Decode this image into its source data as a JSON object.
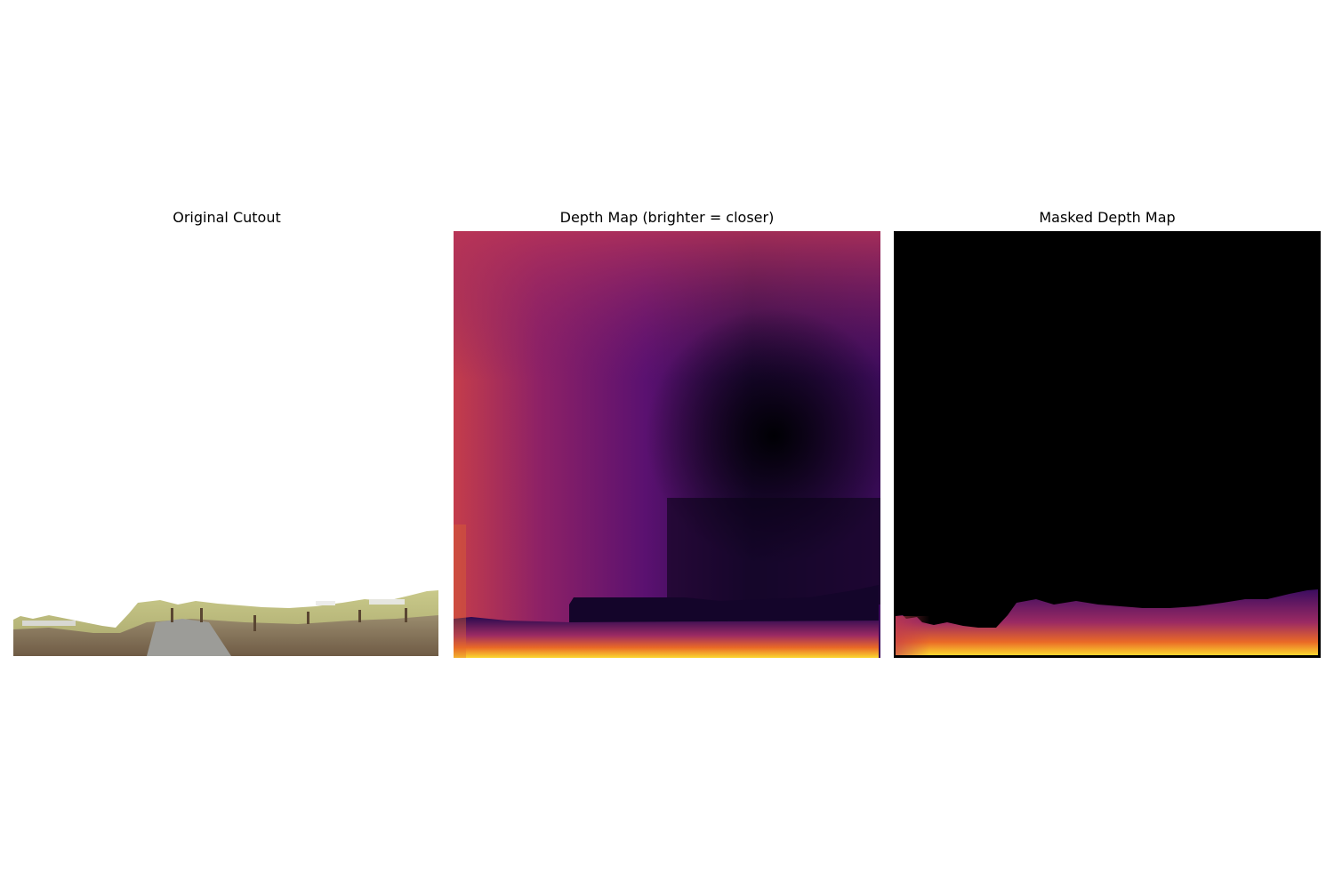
{
  "panels": [
    {
      "title": "Original Cutout"
    },
    {
      "title": "Depth Map (brighter = closer)"
    },
    {
      "title": "Masked Depth Map"
    }
  ],
  "colormap": "inferno"
}
